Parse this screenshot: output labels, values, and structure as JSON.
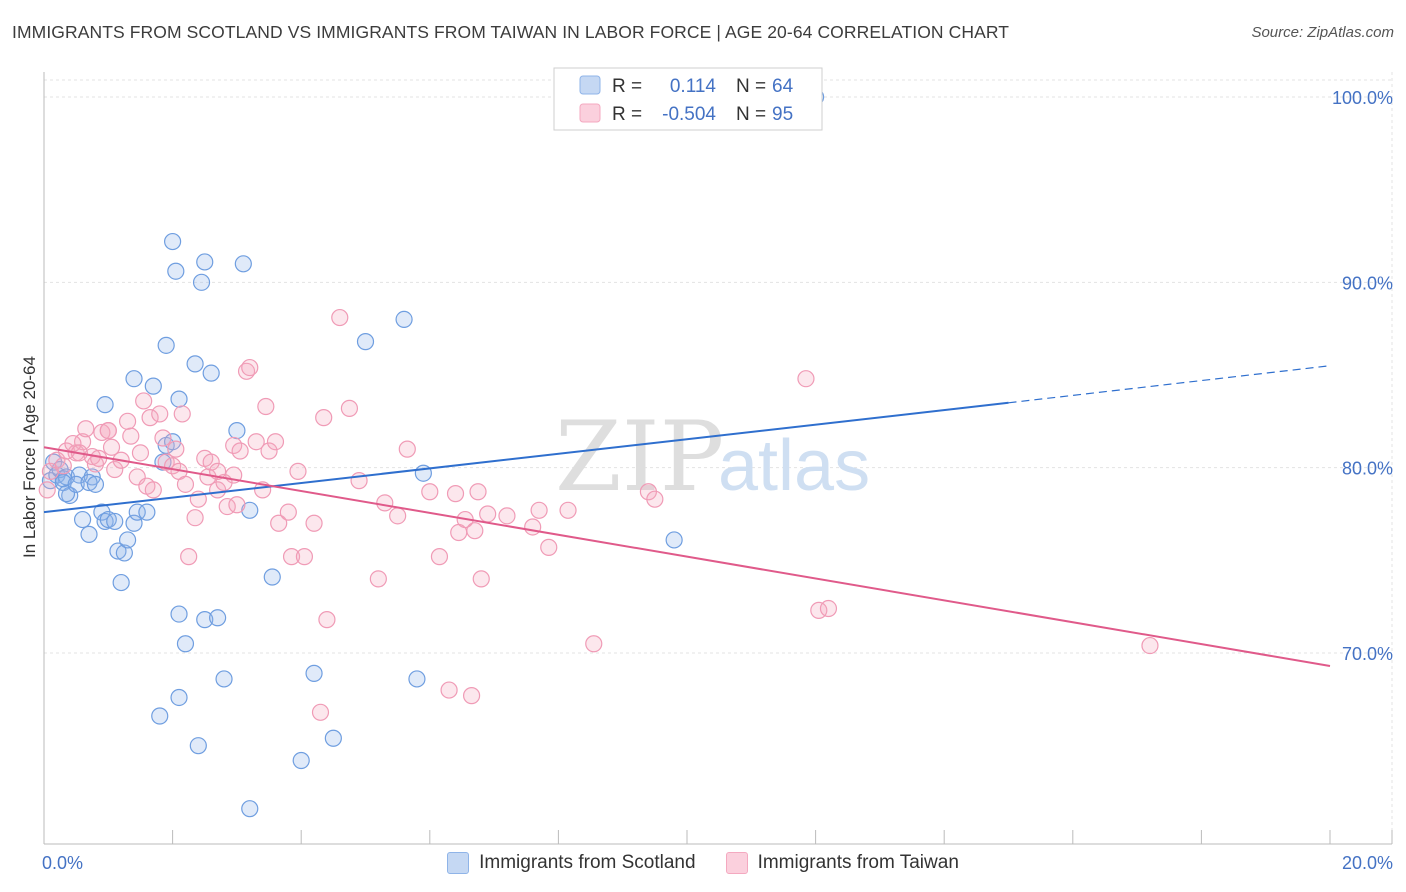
{
  "header": {
    "title": "IMMIGRANTS FROM SCOTLAND VS IMMIGRANTS FROM TAIWAN IN LABOR FORCE | AGE 20-64 CORRELATION CHART",
    "source": "Source: ZipAtlas.com"
  },
  "watermark": {
    "zip": "ZIP",
    "atlas": "atlas"
  },
  "legend_top": {
    "rows": [
      {
        "r_label": "R =",
        "r_value": "0.114",
        "n_label": "N =",
        "n_value": "64"
      },
      {
        "r_label": "R =",
        "r_value": "-0.504",
        "n_label": "N =",
        "n_value": "95"
      }
    ]
  },
  "legend_bottom": {
    "items": [
      "Immigrants from Scotland",
      "Immigrants from Taiwan"
    ]
  },
  "chart_data": {
    "type": "scatter",
    "title": "IMMIGRANTS FROM SCOTLAND VS IMMIGRANTS FROM TAIWAN IN LABOR FORCE | AGE 20-64 CORRELATION CHART",
    "xlabel": "",
    "ylabel": "In Labor Force | Age 20-64",
    "xlim": [
      0,
      20
    ],
    "ylim": [
      61,
      101
    ],
    "x_ticks": [
      {
        "value": 0,
        "label": "0.0%"
      },
      {
        "value": 20,
        "label": "20.0%"
      }
    ],
    "y_ticks": [
      {
        "value": 70,
        "label": "70.0%"
      },
      {
        "value": 80,
        "label": "80.0%"
      },
      {
        "value": 90,
        "label": "90.0%"
      },
      {
        "value": 100,
        "label": "100.0%"
      }
    ],
    "grid": true,
    "legend_placement": "top-center",
    "colors": {
      "scotland": "#8fb4e8",
      "scotland_line": "#2f6fce",
      "taiwan": "#f4a9c0",
      "taiwan_line": "#e05a8a"
    },
    "series": [
      {
        "name": "Immigrants from Scotland",
        "r": 0.114,
        "n": 64,
        "trend": {
          "x": [
            0,
            15
          ],
          "y": [
            77.6,
            83.5
          ],
          "dashed_to": [
            20,
            85.5
          ]
        },
        "points": [
          [
            0.1,
            79.3
          ],
          [
            0.15,
            80.3
          ],
          [
            0.2,
            79.6
          ],
          [
            0.25,
            79.9
          ],
          [
            0.3,
            79.4
          ],
          [
            0.35,
            79.5
          ],
          [
            0.3,
            79.2
          ],
          [
            0.4,
            78.5
          ],
          [
            0.35,
            78.6
          ],
          [
            0.55,
            79.6
          ],
          [
            0.5,
            79.1
          ],
          [
            0.75,
            79.5
          ],
          [
            0.7,
            79.2
          ],
          [
            0.8,
            79.1
          ],
          [
            0.6,
            77.2
          ],
          [
            0.7,
            76.4
          ],
          [
            0.9,
            77.6
          ],
          [
            0.95,
            77.1
          ],
          [
            1.0,
            77.2
          ],
          [
            1.1,
            77.1
          ],
          [
            1.15,
            75.5
          ],
          [
            1.25,
            75.4
          ],
          [
            1.3,
            76.1
          ],
          [
            1.4,
            77.0
          ],
          [
            1.45,
            77.6
          ],
          [
            1.6,
            77.6
          ],
          [
            1.2,
            73.8
          ],
          [
            0.95,
            83.4
          ],
          [
            1.4,
            84.8
          ],
          [
            1.7,
            84.4
          ],
          [
            1.9,
            81.2
          ],
          [
            1.85,
            80.3
          ],
          [
            2.0,
            81.4
          ],
          [
            1.9,
            86.6
          ],
          [
            2.1,
            83.7
          ],
          [
            2.35,
            85.6
          ],
          [
            2.6,
            85.1
          ],
          [
            2.0,
            92.2
          ],
          [
            2.05,
            90.6
          ],
          [
            2.5,
            91.1
          ],
          [
            2.45,
            90.0
          ],
          [
            3.1,
            91.0
          ],
          [
            3.0,
            82.0
          ],
          [
            3.2,
            77.7
          ],
          [
            3.55,
            74.1
          ],
          [
            2.1,
            72.1
          ],
          [
            2.5,
            71.8
          ],
          [
            2.7,
            71.9
          ],
          [
            2.2,
            70.5
          ],
          [
            2.1,
            67.6
          ],
          [
            1.8,
            66.6
          ],
          [
            2.8,
            68.6
          ],
          [
            2.4,
            65.0
          ],
          [
            4.2,
            68.9
          ],
          [
            4.5,
            65.4
          ],
          [
            4.0,
            64.2
          ],
          [
            3.2,
            61.6
          ],
          [
            5.6,
            88.0
          ],
          [
            5.0,
            86.8
          ],
          [
            5.8,
            68.6
          ],
          [
            5.9,
            79.7
          ],
          [
            9.8,
            76.1
          ],
          [
            11.9,
            100.0
          ],
          [
            12.0,
            100.0
          ]
        ]
      },
      {
        "name": "Immigrants from Taiwan",
        "r": -0.504,
        "n": 95,
        "trend": {
          "x": [
            0,
            20
          ],
          "y": [
            81.1,
            69.3
          ]
        },
        "points": [
          [
            0.05,
            78.8
          ],
          [
            0.1,
            79.8
          ],
          [
            0.2,
            80.4
          ],
          [
            0.3,
            80.1
          ],
          [
            0.35,
            80.9
          ],
          [
            0.5,
            80.8
          ],
          [
            0.6,
            81.4
          ],
          [
            0.65,
            82.1
          ],
          [
            0.75,
            80.6
          ],
          [
            0.8,
            80.2
          ],
          [
            0.85,
            80.5
          ],
          [
            0.9,
            81.9
          ],
          [
            1.0,
            82.0
          ],
          [
            1.05,
            81.1
          ],
          [
            1.1,
            79.9
          ],
          [
            1.2,
            80.4
          ],
          [
            1.3,
            82.5
          ],
          [
            1.35,
            81.7
          ],
          [
            1.45,
            79.5
          ],
          [
            1.5,
            80.8
          ],
          [
            1.6,
            79.0
          ],
          [
            1.65,
            82.7
          ],
          [
            1.7,
            78.8
          ],
          [
            1.8,
            82.9
          ],
          [
            1.85,
            81.6
          ],
          [
            1.9,
            80.3
          ],
          [
            2.0,
            80.1
          ],
          [
            2.05,
            81.0
          ],
          [
            2.1,
            79.8
          ],
          [
            2.15,
            82.9
          ],
          [
            2.2,
            79.1
          ],
          [
            2.35,
            77.3
          ],
          [
            2.4,
            78.3
          ],
          [
            2.5,
            80.5
          ],
          [
            2.55,
            79.5
          ],
          [
            2.6,
            80.3
          ],
          [
            2.7,
            78.8
          ],
          [
            2.8,
            79.2
          ],
          [
            2.85,
            77.9
          ],
          [
            2.95,
            81.2
          ],
          [
            3.05,
            80.9
          ],
          [
            3.15,
            85.2
          ],
          [
            3.2,
            85.4
          ],
          [
            3.3,
            81.4
          ],
          [
            3.4,
            78.8
          ],
          [
            3.45,
            83.3
          ],
          [
            3.5,
            80.9
          ],
          [
            3.6,
            81.4
          ],
          [
            3.65,
            77.0
          ],
          [
            3.8,
            77.6
          ],
          [
            3.85,
            75.2
          ],
          [
            4.2,
            77.0
          ],
          [
            4.35,
            82.7
          ],
          [
            4.4,
            71.8
          ],
          [
            4.6,
            88.1
          ],
          [
            4.75,
            83.2
          ],
          [
            4.9,
            79.3
          ],
          [
            5.2,
            74.0
          ],
          [
            5.5,
            77.4
          ],
          [
            5.65,
            81.0
          ],
          [
            6.0,
            78.7
          ],
          [
            6.15,
            75.2
          ],
          [
            6.3,
            68.0
          ],
          [
            6.4,
            78.6
          ],
          [
            6.45,
            76.5
          ],
          [
            6.55,
            77.2
          ],
          [
            6.65,
            67.7
          ],
          [
            6.7,
            76.6
          ],
          [
            6.75,
            78.7
          ],
          [
            6.8,
            74.0
          ],
          [
            6.9,
            77.5
          ],
          [
            7.2,
            77.4
          ],
          [
            7.6,
            76.8
          ],
          [
            7.7,
            77.7
          ],
          [
            7.85,
            75.7
          ],
          [
            8.15,
            77.7
          ],
          [
            8.55,
            70.5
          ],
          [
            9.4,
            78.7
          ],
          [
            9.5,
            78.3
          ],
          [
            11.85,
            84.8
          ],
          [
            12.05,
            72.3
          ],
          [
            12.2,
            72.4
          ],
          [
            17.2,
            70.4
          ],
          [
            4.3,
            66.8
          ],
          [
            2.25,
            75.2
          ],
          [
            1.0,
            82.0
          ],
          [
            0.45,
            81.3
          ],
          [
            0.55,
            80.8
          ],
          [
            1.55,
            83.6
          ],
          [
            2.95,
            79.6
          ],
          [
            3.0,
            78.0
          ],
          [
            3.95,
            79.8
          ],
          [
            4.05,
            75.2
          ],
          [
            2.7,
            79.8
          ],
          [
            5.3,
            78.1
          ]
        ]
      }
    ]
  }
}
